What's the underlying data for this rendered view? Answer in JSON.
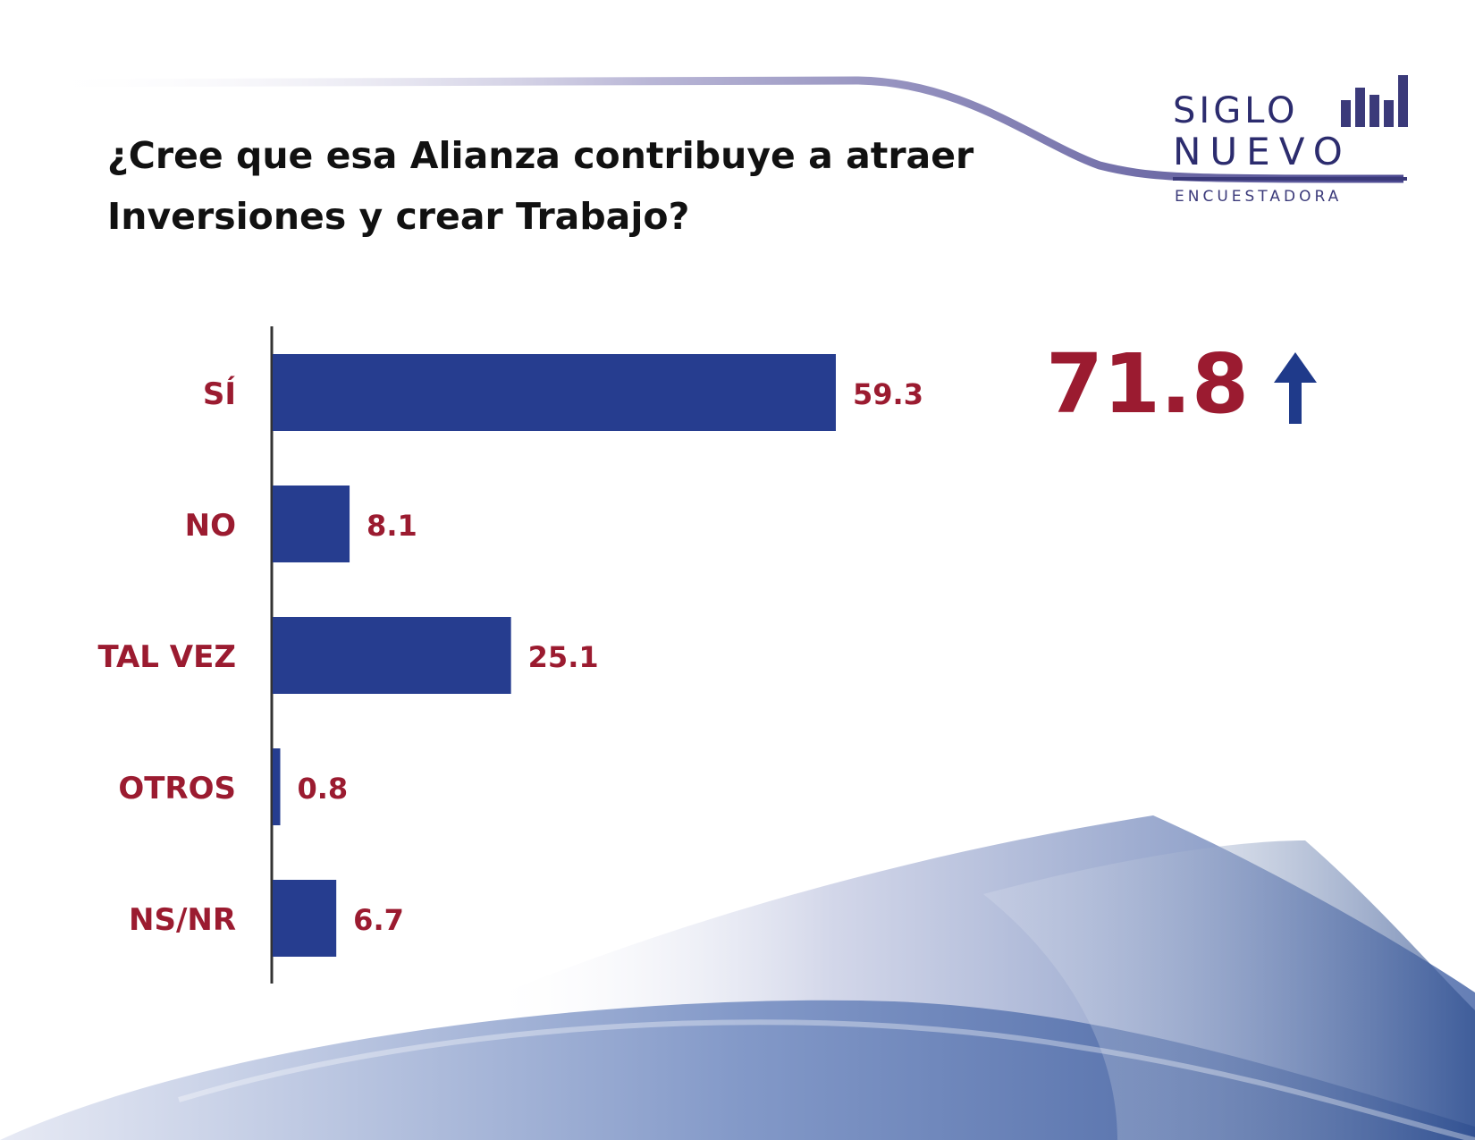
{
  "title": {
    "line1": "¿Cree que esa Alianza contribuye a atraer",
    "line2": "Inversiones y crear Trabajo?"
  },
  "logo": {
    "word1": "SIGLO",
    "word2": "NUEVO",
    "subtitle": "ENCUESTADORA",
    "bars_icon": "bar-chart-logo-icon"
  },
  "highlight": {
    "value": "71.8",
    "icon": "arrow-up-icon",
    "color": "#9b1b30",
    "icon_color": "#1f3a8a"
  },
  "colors": {
    "bar": "#263d8f",
    "label": "#9b1b30",
    "axis": "#333333",
    "decor": "#3f5fa3"
  },
  "chart_data": {
    "type": "bar",
    "orientation": "horizontal",
    "categories": [
      "SÍ",
      "NO",
      "TAL VEZ",
      "OTROS",
      "NS/NR"
    ],
    "values": [
      59.3,
      8.1,
      25.1,
      0.8,
      6.7
    ],
    "value_labels": [
      "59.3",
      "8.1",
      "25.1",
      "0.8",
      "6.7"
    ],
    "title": "",
    "xlabel": "",
    "ylabel": "",
    "xlim": [
      0,
      100
    ],
    "grid": false,
    "legend": "none"
  }
}
